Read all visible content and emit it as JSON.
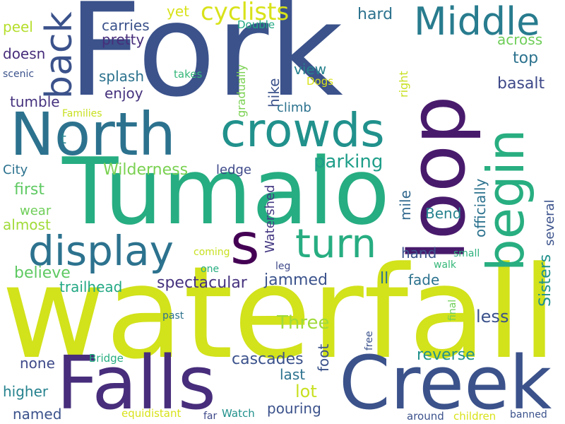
{
  "words": [
    {
      "text": "Fork",
      "color": "#3b528b",
      "vertical": false
    },
    {
      "text": "waterfall",
      "color": "#d2e21b",
      "vertical": false
    },
    {
      "text": "Tumalo",
      "color": "#26ad81",
      "vertical": false
    },
    {
      "text": "North",
      "color": "#2c728e",
      "vertical": false
    },
    {
      "text": "Falls",
      "color": "#472d7b",
      "vertical": false
    },
    {
      "text": "Creek",
      "color": "#3b528b",
      "vertical": false
    },
    {
      "text": "loop",
      "color": "#481a6c",
      "vertical": true
    },
    {
      "text": "crowds",
      "color": "#21918c",
      "vertical": false
    },
    {
      "text": "display",
      "color": "#2c728e",
      "vertical": false
    },
    {
      "text": "begin",
      "color": "#28ae80",
      "vertical": true
    },
    {
      "text": "turn",
      "color": "#27ad81",
      "vertical": false
    },
    {
      "text": "Middle",
      "color": "#287c8e",
      "vertical": false
    },
    {
      "text": "back",
      "color": "#3b528b",
      "vertical": true
    },
    {
      "text": "s",
      "color": "#440154",
      "vertical": false
    },
    {
      "text": "cyclists",
      "color": "#d8e219",
      "vertical": false
    },
    {
      "text": "Wilderness",
      "color": "#7ad151",
      "vertical": false
    },
    {
      "text": "parking",
      "color": "#1f9e89",
      "vertical": false
    },
    {
      "text": "Three",
      "color": "#a0da39",
      "vertical": false
    },
    {
      "text": "spectacular",
      "color": "#46327e",
      "vertical": false
    },
    {
      "text": "jammed",
      "color": "#3b528b",
      "vertical": false
    },
    {
      "text": "cascades",
      "color": "#3b528b",
      "vertical": false
    },
    {
      "text": "reverse",
      "color": "#21918c",
      "vertical": false
    },
    {
      "text": "Sisters",
      "color": "#21918c",
      "vertical": true
    },
    {
      "text": "officially",
      "color": "#2c728e",
      "vertical": true
    },
    {
      "text": "several",
      "color": "#3b528b",
      "vertical": true
    },
    {
      "text": "basalt",
      "color": "#3e4989",
      "vertical": false
    },
    {
      "text": "top",
      "color": "#2c728e",
      "vertical": false
    },
    {
      "text": "across",
      "color": "#6ece58",
      "vertical": false
    },
    {
      "text": "hard",
      "color": "#2c728e",
      "vertical": false
    },
    {
      "text": "carries",
      "color": "#3b528b",
      "vertical": false
    },
    {
      "text": "pretty",
      "color": "#472d7b",
      "vertical": false
    },
    {
      "text": "yet",
      "color": "#d8e219",
      "vertical": false
    },
    {
      "text": "Double",
      "color": "#22a884",
      "vertical": false
    },
    {
      "text": "peel",
      "color": "#b5de2b",
      "vertical": false
    },
    {
      "text": "doesn",
      "color": "#472d7b",
      "vertical": false
    },
    {
      "text": "scenic",
      "color": "#3b528b",
      "vertical": false
    },
    {
      "text": "takes",
      "color": "#35b779",
      "vertical": false
    },
    {
      "text": "splash",
      "color": "#2c728e",
      "vertical": false
    },
    {
      "text": "enjoy",
      "color": "#46327e",
      "vertical": false
    },
    {
      "text": "tumble",
      "color": "#46327e",
      "vertical": false
    },
    {
      "text": "Families",
      "color": "#c8e020",
      "vertical": false
    },
    {
      "text": "t",
      "color": "#26828e",
      "vertical": false
    },
    {
      "text": "gradually",
      "color": "#7ad151",
      "vertical": true
    },
    {
      "text": "hike",
      "color": "#3b528b",
      "vertical": true
    },
    {
      "text": "climb",
      "color": "#2c728e",
      "vertical": false
    },
    {
      "text": "view",
      "color": "#26828e",
      "vertical": false
    },
    {
      "text": "Dogs",
      "color": "#d8e219",
      "vertical": false
    },
    {
      "text": "right",
      "color": "#c8e020",
      "vertical": true
    },
    {
      "text": "City",
      "color": "#2c728e",
      "vertical": false
    },
    {
      "text": "first",
      "color": "#5ec962",
      "vertical": false
    },
    {
      "text": "wear",
      "color": "#6ece58",
      "vertical": false
    },
    {
      "text": "almost",
      "color": "#a0da39",
      "vertical": false
    },
    {
      "text": "ledge",
      "color": "#3e4989",
      "vertical": false
    },
    {
      "text": "Watershed",
      "color": "#443983",
      "vertical": true
    },
    {
      "text": "mile",
      "color": "#31688e",
      "vertical": true
    },
    {
      "text": "Bend",
      "color": "#26828e",
      "vertical": false
    },
    {
      "text": "hand",
      "color": "#3b528b",
      "vertical": false
    },
    {
      "text": "small",
      "color": "#2db27d",
      "vertical": false
    },
    {
      "text": "walk",
      "color": "#35b779",
      "vertical": false
    },
    {
      "text": "coming",
      "color": "#c8e020",
      "vertical": false
    },
    {
      "text": "one",
      "color": "#26ad81",
      "vertical": false
    },
    {
      "text": "leg",
      "color": "#3e4989",
      "vertical": false
    },
    {
      "text": "believe",
      "color": "#5ec962",
      "vertical": false
    },
    {
      "text": "trailhead",
      "color": "#22a884",
      "vertical": false
    },
    {
      "text": "ll",
      "color": "#2c728e",
      "vertical": false
    },
    {
      "text": "fade",
      "color": "#2c728e",
      "vertical": false
    },
    {
      "text": "less",
      "color": "#3b528b",
      "vertical": false
    },
    {
      "text": "past",
      "color": "#2c728e",
      "vertical": false
    },
    {
      "text": "final",
      "color": "#6ece58",
      "vertical": true
    },
    {
      "text": "foot",
      "color": "#3b528b",
      "vertical": true
    },
    {
      "text": "free",
      "color": "#3b528b",
      "vertical": true
    },
    {
      "text": "none",
      "color": "#3e4989",
      "vertical": false
    },
    {
      "text": "Bridge",
      "color": "#26ad81",
      "vertical": false
    },
    {
      "text": "last",
      "color": "#2c728e",
      "vertical": false
    },
    {
      "text": "higher",
      "color": "#26828e",
      "vertical": false
    },
    {
      "text": "named",
      "color": "#3b528b",
      "vertical": false
    },
    {
      "text": "lot",
      "color": "#c8e020",
      "vertical": false
    },
    {
      "text": "pouring",
      "color": "#3b528b",
      "vertical": false
    },
    {
      "text": "equidistant",
      "color": "#d8e219",
      "vertical": false
    },
    {
      "text": "far",
      "color": "#3e4989",
      "vertical": false
    },
    {
      "text": "Watch",
      "color": "#21918c",
      "vertical": false
    },
    {
      "text": "around",
      "color": "#3b528b",
      "vertical": false
    },
    {
      "text": "children",
      "color": "#d8e219",
      "vertical": false
    },
    {
      "text": "banned",
      "color": "#3b528b",
      "vertical": false
    }
  ]
}
